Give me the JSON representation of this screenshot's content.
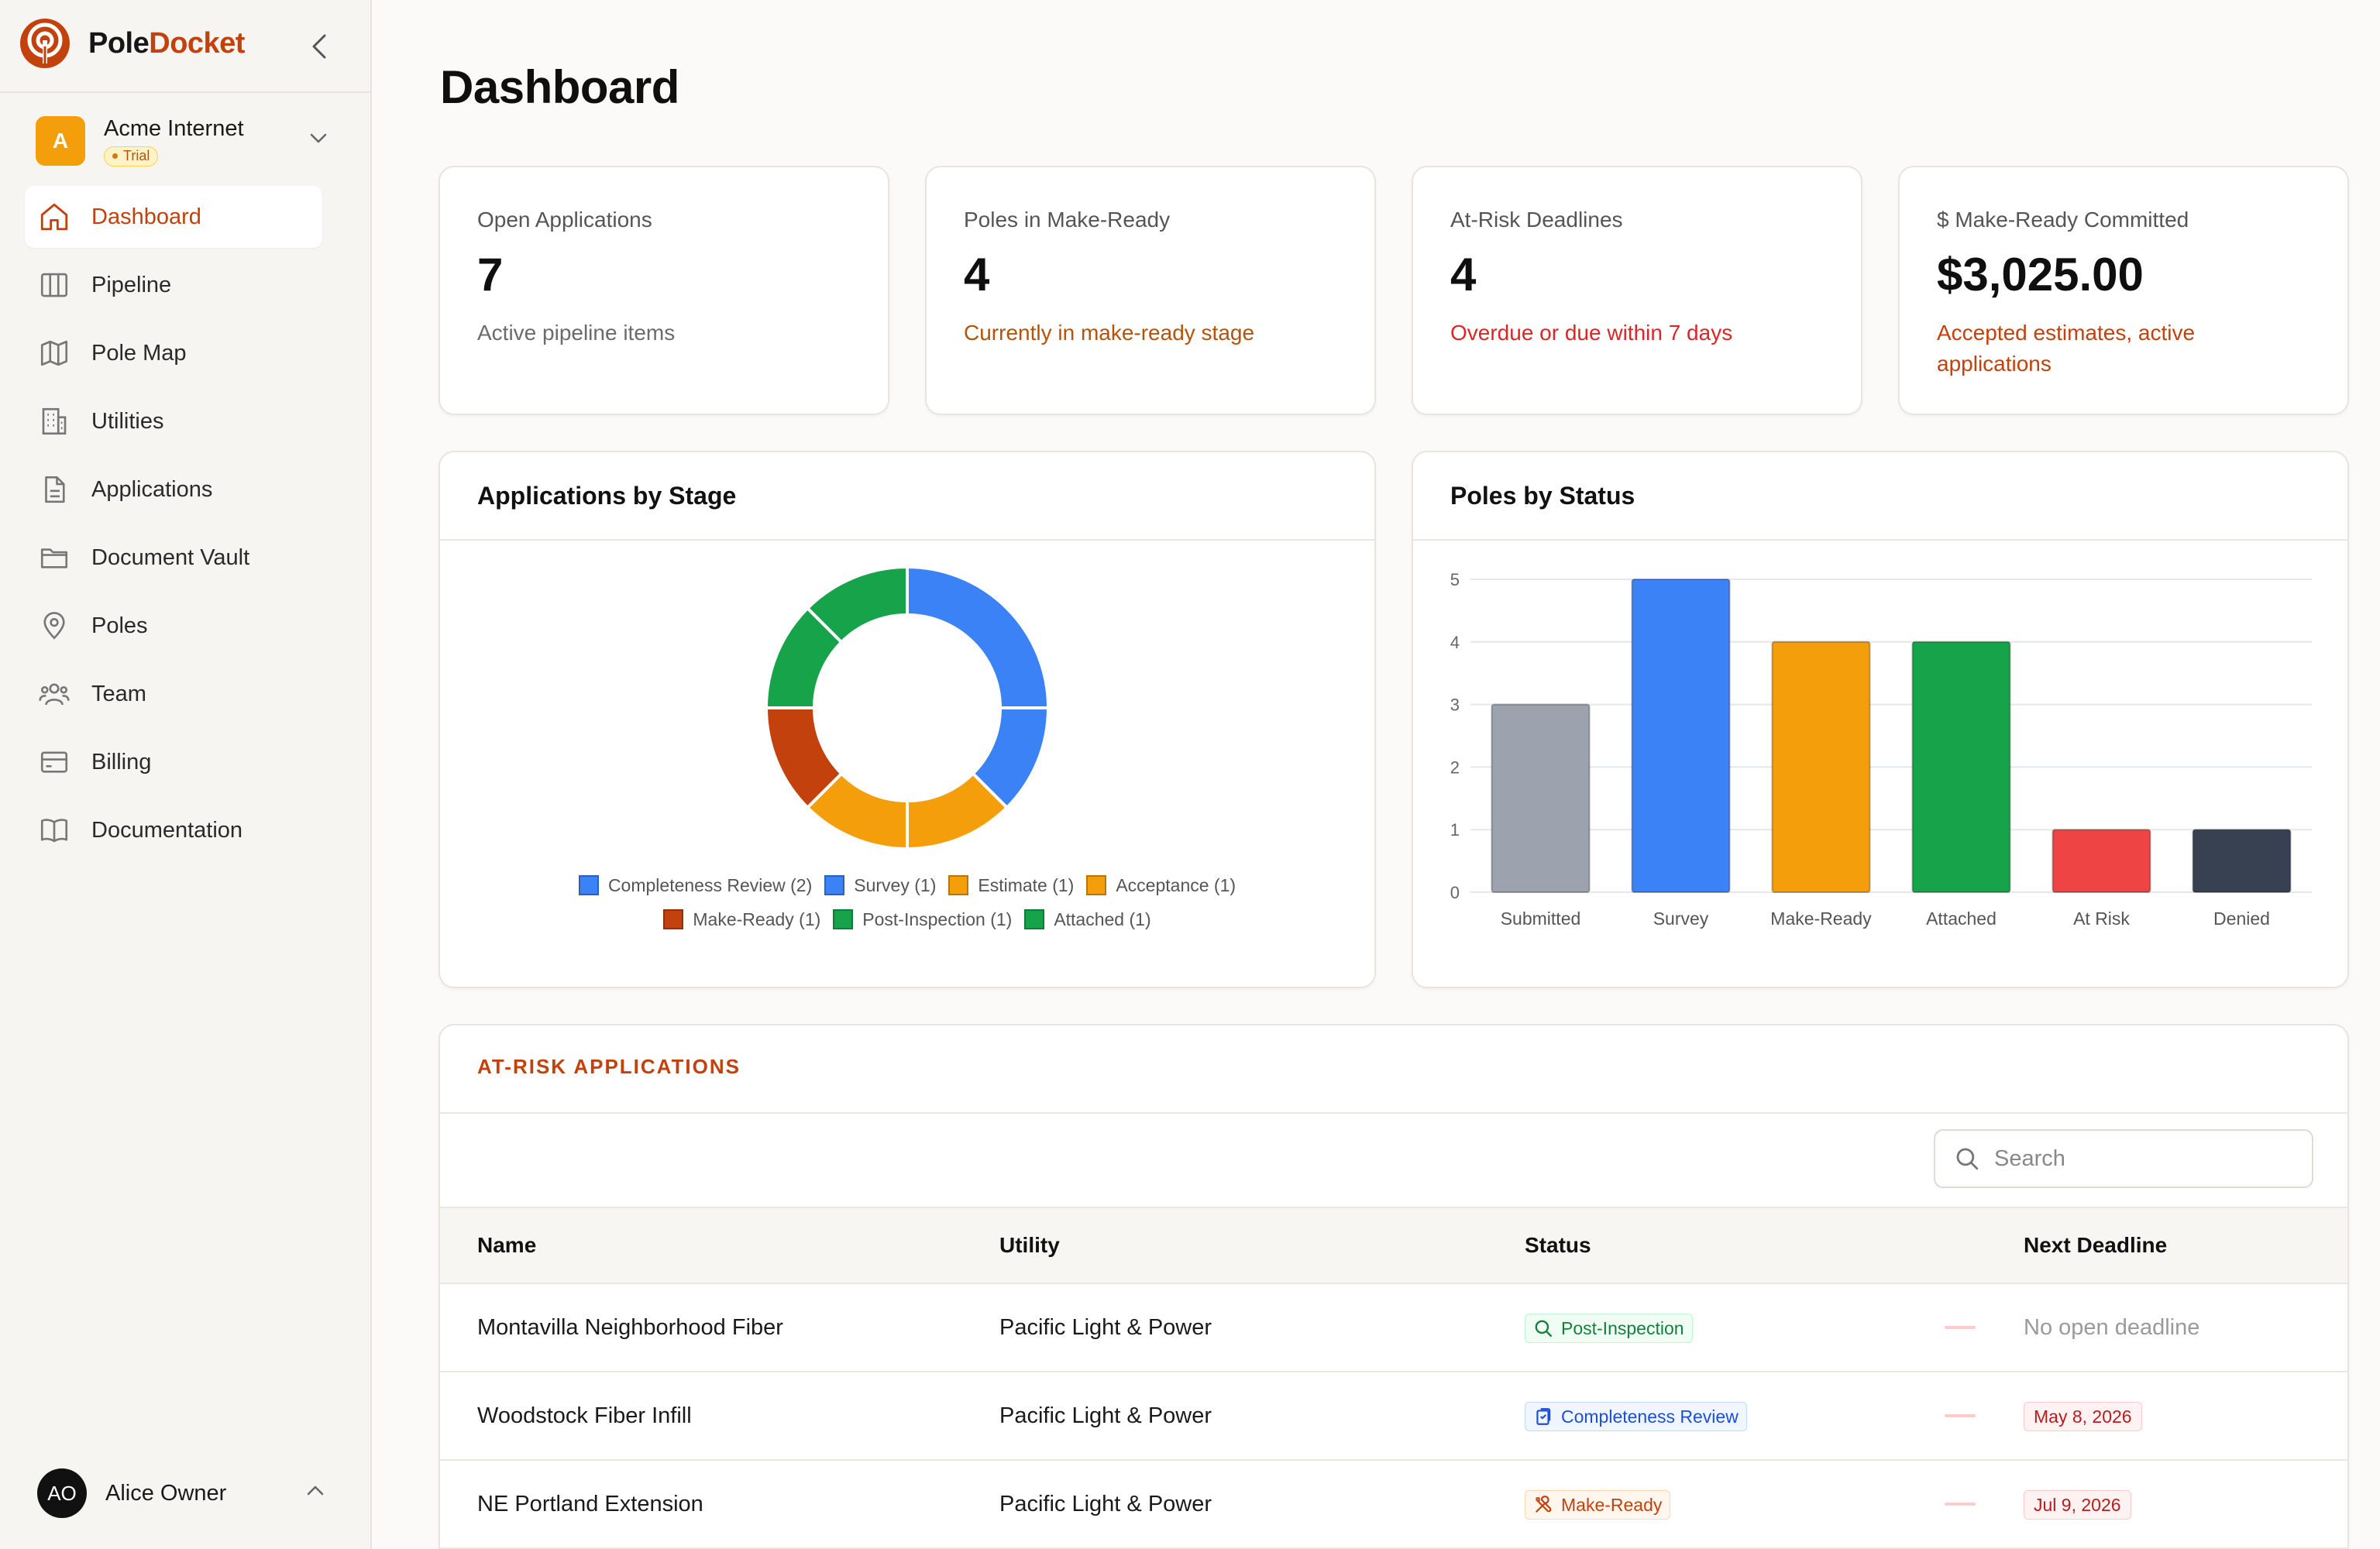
{
  "brand": {
    "name_part1": "Pole",
    "name_part2": "Docket"
  },
  "org": {
    "initial": "A",
    "name": "Acme Internet",
    "badge": "Trial"
  },
  "nav": [
    {
      "label": "Dashboard",
      "icon": "home-icon",
      "active": true
    },
    {
      "label": "Pipeline",
      "icon": "columns-icon"
    },
    {
      "label": "Pole Map",
      "icon": "map-icon"
    },
    {
      "label": "Utilities",
      "icon": "building-icon"
    },
    {
      "label": "Applications",
      "icon": "file-text-icon"
    },
    {
      "label": "Document Vault",
      "icon": "folder-icon"
    },
    {
      "label": "Poles",
      "icon": "map-pin-icon"
    },
    {
      "label": "Team",
      "icon": "users-icon"
    },
    {
      "label": "Billing",
      "icon": "credit-card-icon"
    },
    {
      "label": "Documentation",
      "icon": "book-icon"
    }
  ],
  "user": {
    "initials": "AO",
    "name": "Alice Owner"
  },
  "page": {
    "title": "Dashboard"
  },
  "kpis": [
    {
      "label": "Open Applications",
      "value": "7",
      "sub": "Active pipeline items",
      "sub_color": "#6b6b6b"
    },
    {
      "label": "Poles in Make-Ready",
      "value": "4",
      "sub": "Currently in make-ready stage",
      "sub_color": "#b45309"
    },
    {
      "label": "At-Risk Deadlines",
      "value": "4",
      "sub": "Overdue or due within 7 days",
      "sub_color": "#dc2626"
    },
    {
      "label": "$ Make-Ready Committed",
      "value": "$3,025.00",
      "sub": "Accepted estimates, active applications",
      "sub_color": "#c2410c"
    }
  ],
  "stage_panel": {
    "title": "Applications by Stage"
  },
  "status_panel": {
    "title": "Poles by Status"
  },
  "chart_data": [
    {
      "type": "pie",
      "title": "Applications by Stage",
      "categories": [
        "Completeness Review",
        "Survey",
        "Estimate",
        "Acceptance",
        "Make-Ready",
        "Post-Inspection",
        "Attached"
      ],
      "values": [
        2,
        1,
        1,
        1,
        1,
        1,
        1
      ],
      "legend_labels": [
        "Completeness Review (2)",
        "Survey (1)",
        "Estimate (1)",
        "Acceptance (1)",
        "Make-Ready (1)",
        "Post-Inspection (1)",
        "Attached (1)"
      ],
      "colors": [
        "#3b82f6",
        "#3b82f6",
        "#f59e0b",
        "#f59e0b",
        "#c2410c",
        "#16a34a",
        "#16a34a"
      ],
      "legend_placement": "bottom"
    },
    {
      "type": "bar",
      "title": "Poles by Status",
      "categories": [
        "Submitted",
        "Survey",
        "Make-Ready",
        "Attached",
        "At Risk",
        "Denied"
      ],
      "values": [
        3,
        5,
        4,
        4,
        1,
        1
      ],
      "colors": [
        "#9ca3af",
        "#3b82f6",
        "#f59e0b",
        "#16a34a",
        "#ef4444",
        "#374151"
      ],
      "ylim": [
        0,
        5
      ],
      "yticks": [
        "0",
        "1",
        "2",
        "3",
        "4",
        "5"
      ],
      "grid": true
    }
  ],
  "at_risk": {
    "title": "AT-RISK APPLICATIONS",
    "search_placeholder": "Search",
    "columns": [
      "Name",
      "Utility",
      "Status",
      "Next Deadline"
    ],
    "rows": [
      {
        "name": "Montavilla Neighborhood Fiber",
        "utility": "Pacific Light & Power",
        "status": "Post-Inspection",
        "status_icon": "search-icon",
        "status_fg": "#15803d",
        "status_bg": "#f0fdf4",
        "status_border": "#bbf7d0",
        "deadline": "No open deadline",
        "deadline_type": "none"
      },
      {
        "name": "Woodstock Fiber Infill",
        "utility": "Pacific Light & Power",
        "status": "Completeness Review",
        "status_icon": "clipboard-icon",
        "status_fg": "#1d4ed8",
        "status_bg": "#eff6ff",
        "status_border": "#bfdbfe",
        "deadline": "May 8, 2026",
        "deadline_type": "date"
      },
      {
        "name": "NE Portland Extension",
        "utility": "Pacific Light & Power",
        "status": "Make-Ready",
        "status_icon": "tools-icon",
        "status_fg": "#c2410c",
        "status_bg": "#fff7ed",
        "status_border": "#fed7aa",
        "deadline": "Jul 9, 2026",
        "deadline_type": "date"
      }
    ]
  }
}
